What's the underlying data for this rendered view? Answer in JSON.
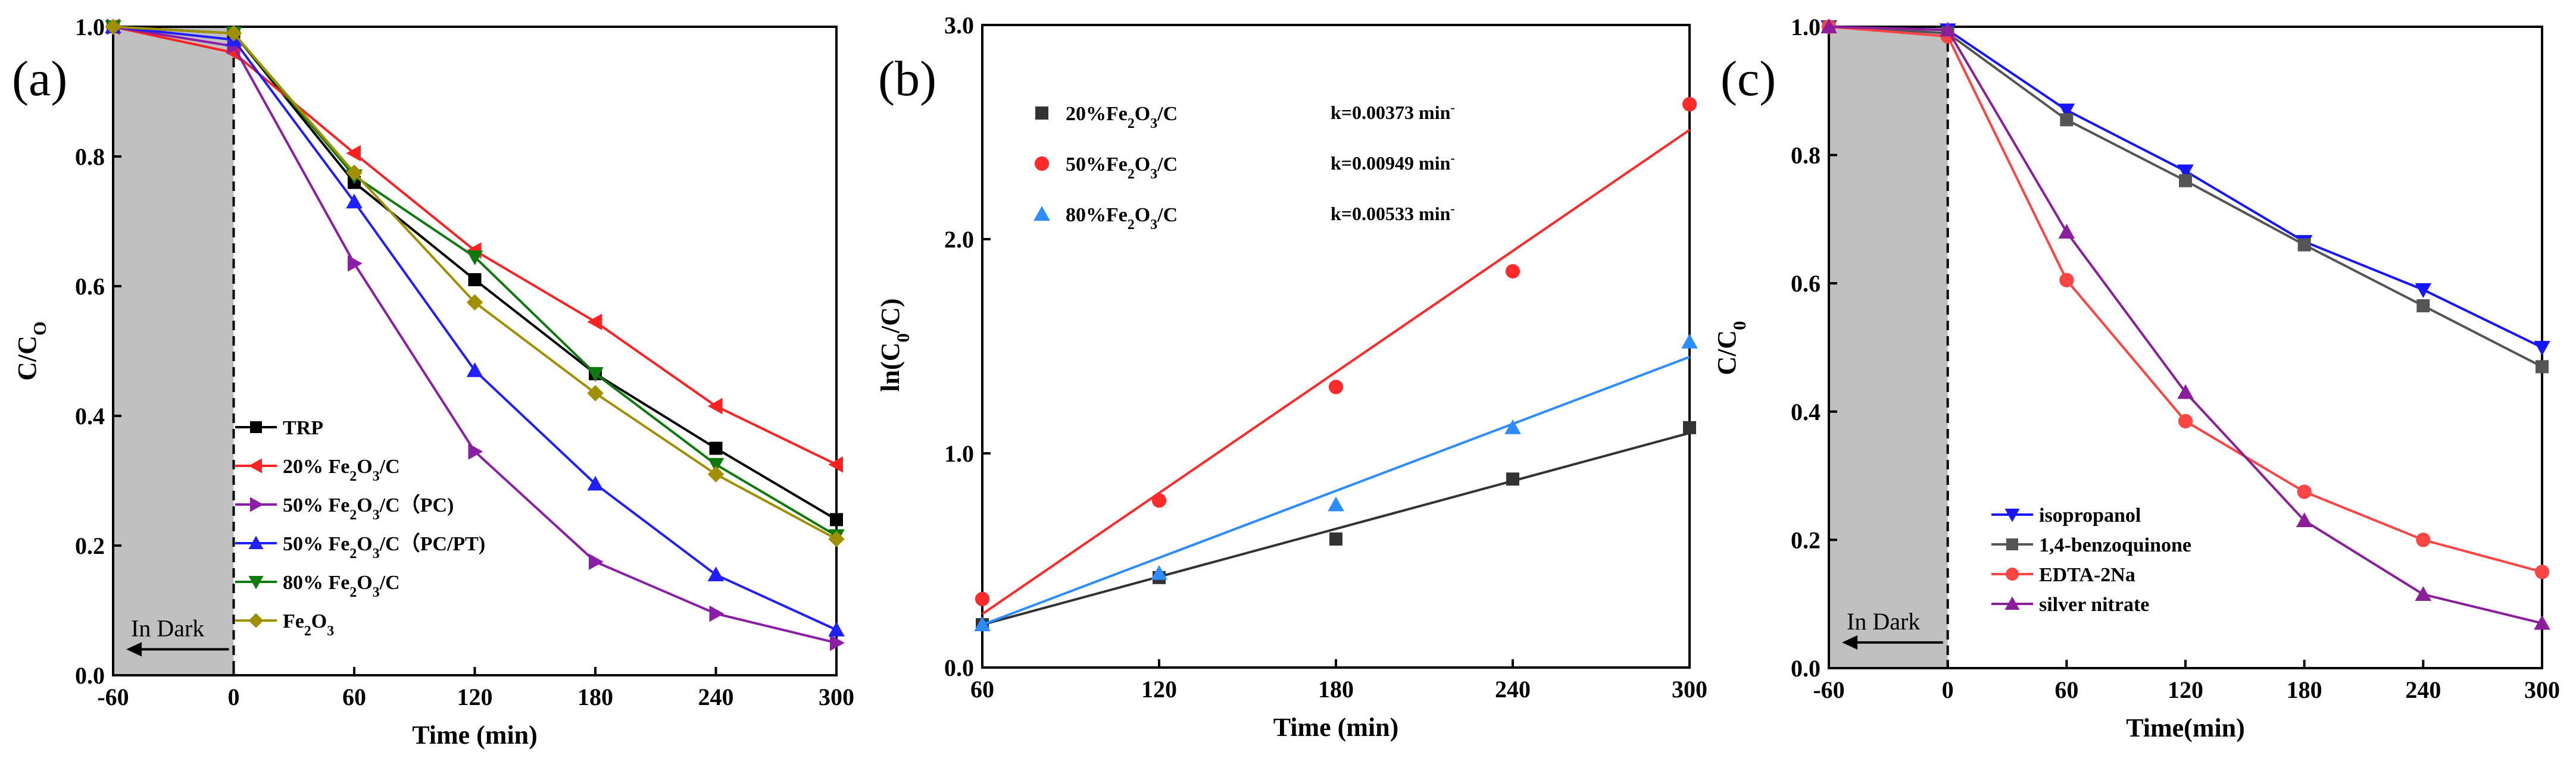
{
  "chart_data": [
    {
      "type": "line",
      "panel_label": "(a)",
      "xlabel": "Time (min)",
      "ylabel": "C/C",
      "ylabel_sub": "O",
      "x": [
        -60,
        0,
        60,
        120,
        180,
        240,
        300
      ],
      "xlim": [
        -60,
        300
      ],
      "ylim": [
        0,
        1
      ],
      "xticks": [
        -60,
        0,
        60,
        120,
        180,
        240,
        300
      ],
      "yticks": [
        0.0,
        0.2,
        0.4,
        0.6,
        0.8,
        1.0
      ],
      "ytick_labels": [
        "0.0",
        "0.2",
        "0.4",
        "0.6",
        "0.8",
        "1.0"
      ],
      "dark_annotation": "In Dark",
      "legend_position": "bottom-left",
      "series": [
        {
          "name": "TRP",
          "legend": [
            {
              "t": "TRP"
            }
          ],
          "color": "#000000",
          "marker": "square",
          "values": [
            1.0,
            0.99,
            0.76,
            0.61,
            0.465,
            0.35,
            0.24
          ]
        },
        {
          "name": "20% Fe2O3/C",
          "legend": [
            {
              "t": "20% Fe"
            },
            {
              "t": "2",
              "sub": true
            },
            {
              "t": "O"
            },
            {
              "t": "3",
              "sub": true
            },
            {
              "t": "/C"
            }
          ],
          "color": "#ff2222",
          "marker": "triangle-left",
          "values": [
            1.0,
            0.96,
            0.805,
            0.655,
            0.545,
            0.415,
            0.325
          ]
        },
        {
          "name": "50% Fe2O3/C (PC)",
          "legend": [
            {
              "t": "50% Fe"
            },
            {
              "t": "2",
              "sub": true
            },
            {
              "t": "O"
            },
            {
              "t": "3",
              "sub": true
            },
            {
              "t": "/C（PC)"
            }
          ],
          "color": "#8b1ea6",
          "marker": "triangle-right",
          "values": [
            1.0,
            0.97,
            0.635,
            0.345,
            0.175,
            0.095,
            0.05
          ]
        },
        {
          "name": "50% Fe2O3/C (PC/PT)",
          "legend": [
            {
              "t": "50% Fe"
            },
            {
              "t": "2",
              "sub": true
            },
            {
              "t": "O"
            },
            {
              "t": "3",
              "sub": true
            },
            {
              "t": "/C（PC/PT)"
            }
          ],
          "color": "#1f1fff",
          "marker": "triangle-up",
          "values": [
            1.0,
            0.98,
            0.73,
            0.47,
            0.295,
            0.155,
            0.07
          ]
        },
        {
          "name": "80% Fe2O3/C",
          "legend": [
            {
              "t": "80% Fe"
            },
            {
              "t": "2",
              "sub": true
            },
            {
              "t": "O"
            },
            {
              "t": "3",
              "sub": true
            },
            {
              "t": "/C"
            }
          ],
          "color": "#0d7a0d",
          "marker": "triangle-down",
          "values": [
            1.0,
            0.99,
            0.77,
            0.645,
            0.465,
            0.325,
            0.215
          ]
        },
        {
          "name": "Fe2O3",
          "legend": [
            {
              "t": "Fe"
            },
            {
              "t": "2",
              "sub": true
            },
            {
              "t": "O"
            },
            {
              "t": "3",
              "sub": true
            }
          ],
          "color": "#a09000",
          "marker": "diamond",
          "values": [
            1.0,
            0.99,
            0.775,
            0.575,
            0.435,
            0.31,
            0.21
          ]
        }
      ]
    },
    {
      "type": "scatter",
      "panel_label": "(b)",
      "xlabel": "Time (min)",
      "ylabel": "ln(C",
      "ylabel_sub": "0",
      "ylabel_tail": "/C)",
      "x": [
        60,
        120,
        180,
        240,
        300
      ],
      "xlim": [
        60,
        300
      ],
      "ylim": [
        0,
        3
      ],
      "xticks": [
        60,
        120,
        180,
        240,
        300
      ],
      "yticks": [
        0,
        1,
        2,
        3
      ],
      "ytick_labels": [
        "0.0",
        "1.0",
        "2.0",
        "3.0"
      ],
      "legend_position": "top-left",
      "series": [
        {
          "name": "20%Fe2O3/C",
          "legend": [
            {
              "t": "20%Fe"
            },
            {
              "t": "2",
              "sub": true
            },
            {
              "t": "O"
            },
            {
              "t": "3",
              "sub": true
            },
            {
              "t": "/C"
            }
          ],
          "color": "#333333",
          "marker": "square",
          "values": [
            0.2,
            0.42,
            0.6,
            0.88,
            1.12
          ],
          "fit": [
            0.2,
            1.095
          ],
          "k_label": "k=0.00373 min"
        },
        {
          "name": "50%Fe2O3/C",
          "legend": [
            {
              "t": "50%Fe"
            },
            {
              "t": "2",
              "sub": true
            },
            {
              "t": "O"
            },
            {
              "t": "3",
              "sub": true
            },
            {
              "t": "/C"
            }
          ],
          "color": "#ff2a2a",
          "marker": "circle",
          "values": [
            0.32,
            0.78,
            1.31,
            1.85,
            2.63
          ],
          "fit": [
            0.25,
            2.51
          ],
          "k_label": "k=0.00949 min"
        },
        {
          "name": "80%Fe2O3/C",
          "legend": [
            {
              "t": "80%Fe"
            },
            {
              "t": "2",
              "sub": true
            },
            {
              "t": "O"
            },
            {
              "t": "3",
              "sub": true
            },
            {
              "t": "/C"
            }
          ],
          "color": "#2d8cff",
          "marker": "triangle-up",
          "values": [
            0.2,
            0.44,
            0.76,
            1.12,
            1.52
          ],
          "fit": [
            0.2,
            1.45
          ],
          "k_label": "k=0.00533 min"
        }
      ],
      "k_superscript": "-"
    },
    {
      "type": "line",
      "panel_label": "(c)",
      "xlabel": "Time(min)",
      "ylabel": "C/C",
      "ylabel_sub": "0",
      "x": [
        -60,
        0,
        60,
        120,
        180,
        240,
        300
      ],
      "xlim": [
        -60,
        300
      ],
      "ylim": [
        0,
        1
      ],
      "xticks": [
        -60,
        0,
        60,
        120,
        180,
        240,
        300
      ],
      "yticks": [
        0.0,
        0.2,
        0.4,
        0.6,
        0.8,
        1.0
      ],
      "ytick_labels": [
        "0.0",
        "0.2",
        "0.4",
        "0.6",
        "0.8",
        "1.0"
      ],
      "dark_annotation": "In Dark",
      "legend_position": "bottom-left",
      "series": [
        {
          "name": "isopropanol",
          "legend": [
            {
              "t": "isopropanol"
            }
          ],
          "color": "#1515ff",
          "marker": "triangle-down",
          "values": [
            1.0,
            0.995,
            0.87,
            0.775,
            0.665,
            0.59,
            0.5
          ]
        },
        {
          "name": "1,4-benzoquinone",
          "legend": [
            {
              "t": "1,4-benzoquinone"
            }
          ],
          "color": "#555555",
          "marker": "square",
          "values": [
            1.0,
            0.99,
            0.855,
            0.76,
            0.66,
            0.565,
            0.47
          ]
        },
        {
          "name": "EDTA-2Na",
          "legend": [
            {
              "t": "EDTA-2Na"
            }
          ],
          "color": "#ff4444",
          "marker": "circle",
          "values": [
            1.0,
            0.985,
            0.605,
            0.385,
            0.275,
            0.2,
            0.15
          ]
        },
        {
          "name": "silver nitrate",
          "legend": [
            {
              "t": "silver nitrate"
            }
          ],
          "color": "#8b1e9a",
          "marker": "triangle-up",
          "values": [
            1.0,
            0.995,
            0.68,
            0.43,
            0.23,
            0.115,
            0.07
          ]
        }
      ]
    }
  ]
}
